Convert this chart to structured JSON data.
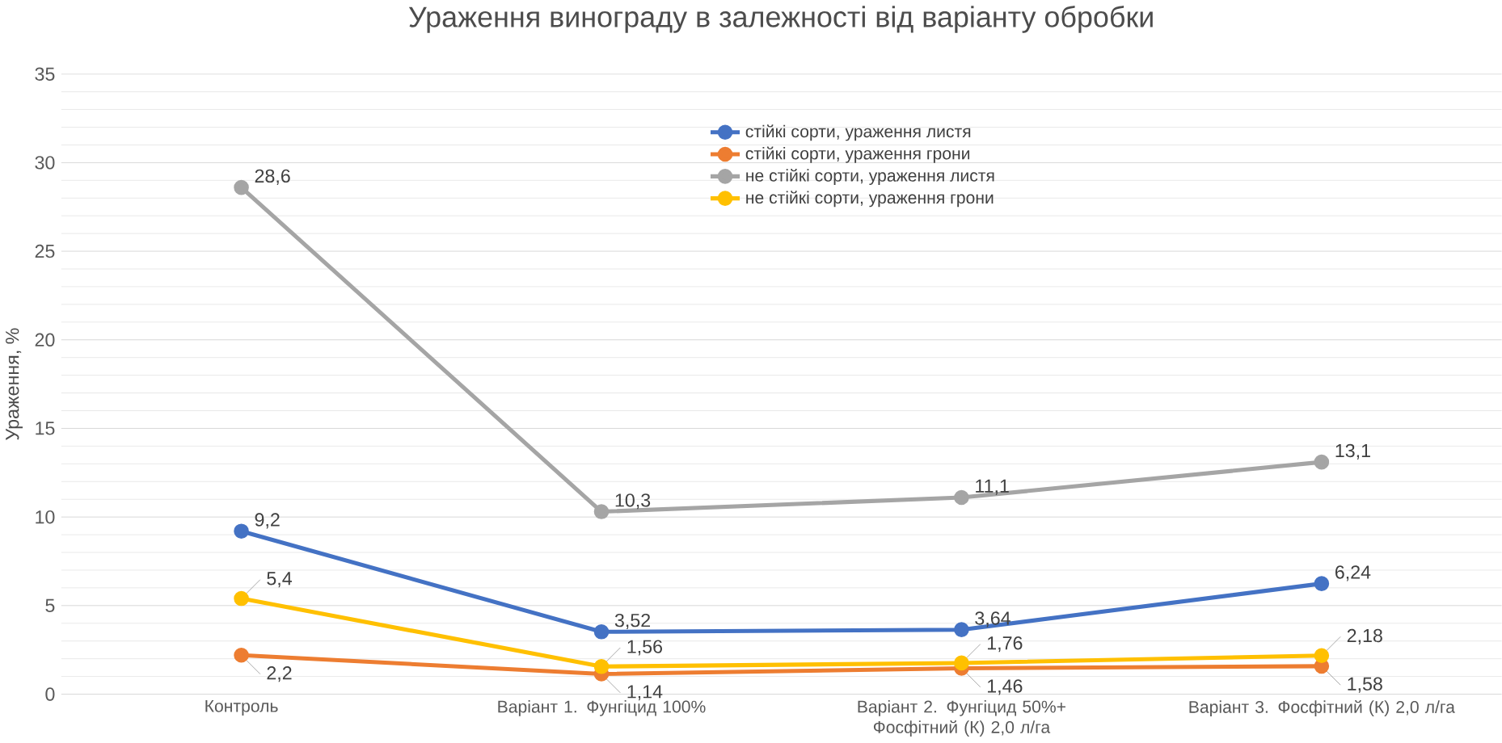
{
  "chart_data": {
    "type": "line",
    "title": "Ураження винограду в залежності від варіанту обробки",
    "ylabel": "Ураження, %",
    "categories": [
      "Контроль",
      "Варіант 1. Фунгіцид 100%",
      "Варіант 2. Фунгіцид 50%+ Фосфітний (К) 2,0 л/га",
      "Варіант 3. Фосфітний (К) 2,0 л/га"
    ],
    "series": [
      {
        "name": "стійкі сорти, ураження листя",
        "color": "#4472c4",
        "values": [
          9.2,
          3.52,
          3.64,
          6.24
        ],
        "value_labels": [
          "9,2",
          "3,52",
          "3,64",
          "6,24"
        ]
      },
      {
        "name": "стійкі сорти, ураження грони",
        "color": "#ed7d31",
        "values": [
          2.2,
          1.14,
          1.46,
          1.58
        ],
        "value_labels": [
          "2,2",
          "1,14",
          "1,46",
          "1,58"
        ]
      },
      {
        "name": "не стійкі сорти, ураження листя",
        "color": "#a5a5a5",
        "values": [
          28.6,
          10.3,
          11.1,
          13.1
        ],
        "value_labels": [
          "28,6",
          "10,3",
          "11,1",
          "13,1"
        ]
      },
      {
        "name": "не стійкі сорти, ураження грони",
        "color": "#ffc000",
        "values": [
          5.4,
          1.56,
          1.76,
          2.18
        ],
        "value_labels": [
          "5,4",
          "1,56",
          "1,76",
          "2,18"
        ]
      }
    ],
    "ylim": [
      0,
      35
    ],
    "yticks": [
      0,
      5,
      10,
      15,
      20,
      25,
      30,
      35
    ],
    "grid": "y",
    "legend": "top",
    "marker": "circle"
  }
}
